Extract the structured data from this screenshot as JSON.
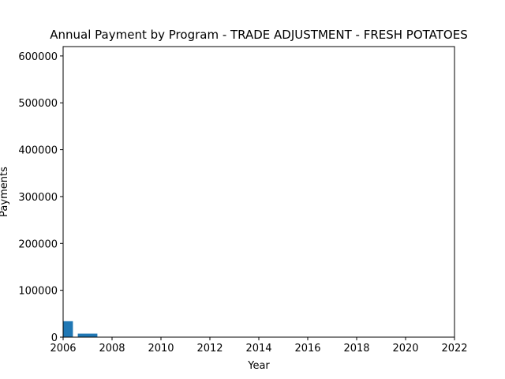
{
  "chart_data": {
    "type": "bar",
    "title": "Annual Payment by Program - TRADE ADJUSTMENT - FRESH POTATOES",
    "xlabel": "Year",
    "ylabel": "Payments",
    "xlim": [
      2006,
      2022
    ],
    "ylim": [
      0,
      620000
    ],
    "xticks": [
      "2006",
      "2008",
      "2010",
      "2012",
      "2014",
      "2016",
      "2018",
      "2020",
      "2022"
    ],
    "yticks": [
      "0",
      "100000",
      "200000",
      "300000",
      "400000",
      "500000",
      "600000"
    ],
    "bar_width_years": 0.8,
    "bars": [
      {
        "x": 2006,
        "value": 34000
      },
      {
        "x": 2007,
        "value": 7500
      }
    ],
    "grid": false,
    "bar_color": "#1f77b4"
  }
}
